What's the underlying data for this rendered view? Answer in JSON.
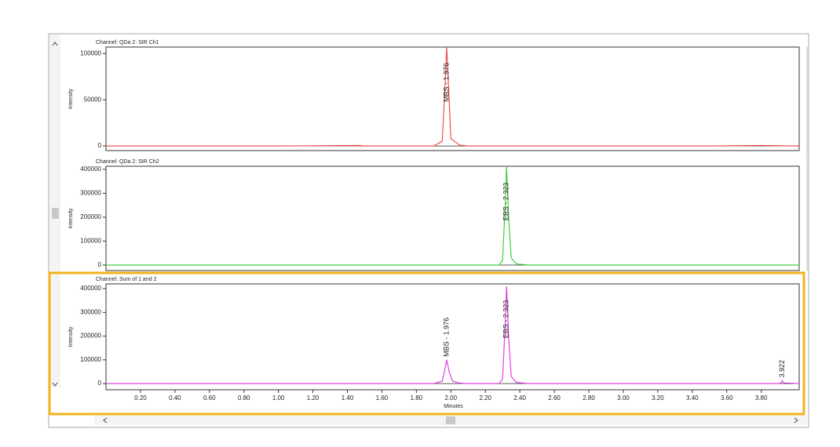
{
  "chart_data": [
    {
      "type": "line",
      "title": "Channel: QDa 2: SIR Ch1",
      "y_label": "Intensity",
      "x": [
        0,
        0.5,
        1.0,
        1.47,
        1.5,
        1.9,
        1.95,
        1.965,
        1.976,
        1.99,
        2.0,
        2.05,
        2.1,
        2.5,
        3.0,
        3.5,
        3.8,
        4.02
      ],
      "values": [
        0,
        0,
        0,
        500,
        0,
        0,
        5000,
        60000,
        107000,
        50000,
        8000,
        1000,
        0,
        0,
        0,
        0,
        500,
        0
      ],
      "color": "#f05050",
      "xlim": [
        0,
        4.02
      ],
      "ylim": [
        -5000,
        107000
      ],
      "yticks": [
        0,
        50000,
        100000
      ],
      "annotations": [
        {
          "text": "MBS - 1.976",
          "x": 1.976
        }
      ]
    },
    {
      "type": "line",
      "title": "Channel: QDa 2: SIR Ch2",
      "y_label": "Intensity",
      "x": [
        0,
        1,
        2,
        2.28,
        2.3,
        2.315,
        2.323,
        2.335,
        2.35,
        2.38,
        2.45,
        3,
        4.02
      ],
      "values": [
        0,
        0,
        0,
        0,
        20000,
        250000,
        410000,
        200000,
        30000,
        5000,
        0,
        0,
        0
      ],
      "color": "#40d040",
      "xlim": [
        0,
        4.02
      ],
      "ylim": [
        -23000,
        413000
      ],
      "yticks": [
        0,
        100000,
        200000,
        300000,
        400000
      ],
      "annotations": [
        {
          "text": "EBS - 2.323",
          "x": 2.323
        }
      ]
    },
    {
      "type": "line",
      "title": "Channel: Sum of 1 and 2",
      "y_label": "Intensity",
      "x_label": "Minutes",
      "x": [
        0,
        0.5,
        1,
        1.5,
        1.9,
        1.95,
        1.965,
        1.976,
        1.99,
        2.01,
        2.05,
        2.1,
        2.28,
        2.3,
        2.315,
        2.323,
        2.335,
        2.35,
        2.38,
        2.45,
        3,
        3.5,
        3.9,
        3.915,
        3.922,
        3.93,
        4.02
      ],
      "values": [
        0,
        0,
        0,
        0,
        0,
        10000,
        60000,
        100000,
        50000,
        10000,
        2000,
        0,
        0,
        20000,
        250000,
        410000,
        200000,
        30000,
        5000,
        0,
        0,
        0,
        0,
        3000,
        12000,
        3000,
        0
      ],
      "color": "#e040e0",
      "xlim": [
        0,
        4.02
      ],
      "ylim": [
        -26000,
        420000
      ],
      "yticks": [
        0,
        100000,
        200000,
        300000,
        400000
      ],
      "xticks": [
        {
          "value": 0.2,
          "label": "0.20"
        },
        {
          "value": 0.4,
          "label": "0.40"
        },
        {
          "value": 0.6,
          "label": "0.60"
        },
        {
          "value": 0.8,
          "label": "0.80"
        },
        {
          "value": 1.0,
          "label": "1.00"
        },
        {
          "value": 1.2,
          "label": "1.20"
        },
        {
          "value": 1.4,
          "label": "1.40"
        },
        {
          "value": 1.6,
          "label": "1.60"
        },
        {
          "value": 1.8,
          "label": "1.80"
        },
        {
          "value": 2.0,
          "label": "2.00"
        },
        {
          "value": 2.2,
          "label": "2.20"
        },
        {
          "value": 2.4,
          "label": "2.40"
        },
        {
          "value": 2.6,
          "label": "2.60"
        },
        {
          "value": 2.8,
          "label": "2.80"
        },
        {
          "value": 3.0,
          "label": "3.00"
        },
        {
          "value": 3.2,
          "label": "3.20"
        },
        {
          "value": 3.4,
          "label": "3.40"
        },
        {
          "value": 3.6,
          "label": "3.60"
        },
        {
          "value": 3.8,
          "label": "3.80"
        }
      ],
      "annotations": [
        {
          "text": "MBS - 1.976",
          "x": 1.976
        },
        {
          "text": "EBS - 2.323",
          "x": 2.323
        },
        {
          "text": "3.922",
          "x": 3.922
        }
      ]
    }
  ]
}
